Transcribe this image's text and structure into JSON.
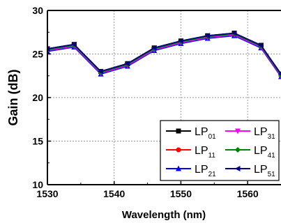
{
  "chart_data": {
    "type": "line",
    "xlabel": "Wavelength (nm)",
    "ylabel": "Gain (dB)",
    "xlim": [
      1530,
      1565
    ],
    "ylim": [
      10,
      30
    ],
    "xticks": [
      1530,
      1540,
      1550,
      1560
    ],
    "yticks": [
      10,
      15,
      20,
      25,
      30
    ],
    "grid": true,
    "legend_position": "bottom-right",
    "x": [
      1530,
      1534,
      1538,
      1542,
      1546,
      1550,
      1554,
      1558,
      1562,
      1565
    ],
    "series": [
      {
        "name": "LP",
        "sub": "01",
        "color": "#000000",
        "marker": "square",
        "values": [
          25.6,
          26.1,
          23.0,
          23.9,
          25.7,
          26.5,
          27.1,
          27.4,
          26.0,
          22.7
        ]
      },
      {
        "name": "LP",
        "sub": "11",
        "color": "#ff0000",
        "marker": "circle",
        "values": [
          25.5,
          26.0,
          22.9,
          23.8,
          25.6,
          26.4,
          27.0,
          27.3,
          25.9,
          22.6
        ]
      },
      {
        "name": "LP",
        "sub": "21",
        "color": "#0000ff",
        "marker": "triangle-up",
        "values": [
          25.3,
          25.8,
          22.7,
          23.6,
          25.4,
          26.2,
          26.8,
          27.1,
          25.7,
          22.4
        ]
      },
      {
        "name": "LP",
        "sub": "31",
        "color": "#ff00ff",
        "marker": "triangle-down",
        "values": [
          25.4,
          25.9,
          22.8,
          23.7,
          25.5,
          26.3,
          26.9,
          27.2,
          25.8,
          22.5
        ]
      },
      {
        "name": "LP",
        "sub": "41",
        "color": "#008000",
        "marker": "diamond",
        "values": [
          25.5,
          26.0,
          22.9,
          23.8,
          25.6,
          26.4,
          27.0,
          27.3,
          25.9,
          22.6
        ]
      },
      {
        "name": "LP",
        "sub": "51",
        "color": "#000080",
        "marker": "triangle-left",
        "values": [
          25.6,
          26.1,
          23.0,
          23.9,
          25.7,
          26.5,
          27.1,
          27.4,
          26.0,
          22.7
        ]
      }
    ]
  }
}
